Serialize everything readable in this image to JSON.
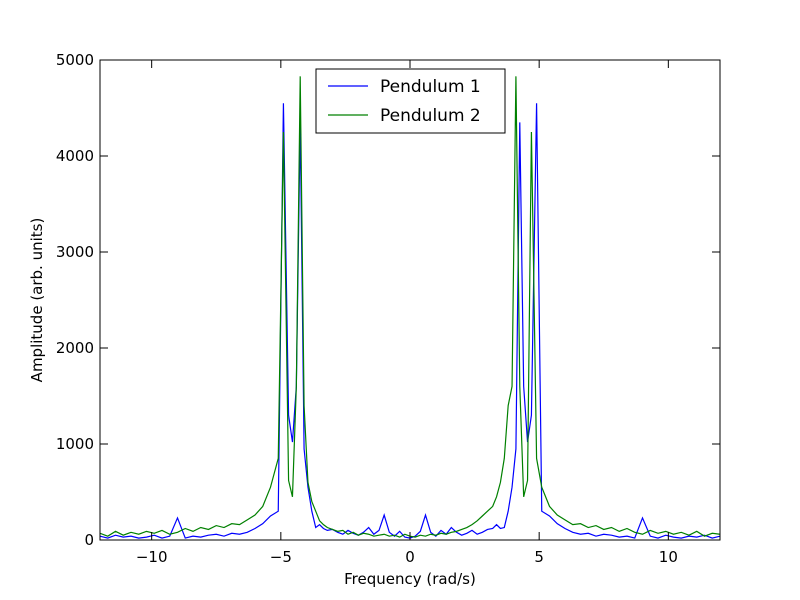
{
  "chart_data": {
    "type": "line",
    "title": "",
    "xlabel": "Frequency (rad/s)",
    "ylabel": "Amplitude (arb. units)",
    "xlim": [
      -12,
      12
    ],
    "ylim": [
      0,
      5000
    ],
    "xticks": [
      -10,
      -5,
      0,
      5,
      10
    ],
    "xtick_labels": [
      "−10",
      "−5",
      "0",
      "5",
      "10"
    ],
    "yticks": [
      0,
      1000,
      2000,
      3000,
      4000,
      5000
    ],
    "ytick_labels": [
      "0",
      "1000",
      "2000",
      "3000",
      "4000",
      "5000"
    ],
    "grid": false,
    "legend_position": "top-center",
    "series": [
      {
        "name": "Pendulum 1",
        "color": "#0000ff",
        "x": [
          -12.0,
          -11.7,
          -11.4,
          -11.1,
          -10.8,
          -10.5,
          -10.2,
          -9.9,
          -9.6,
          -9.3,
          -9.0,
          -8.7,
          -8.4,
          -8.1,
          -7.8,
          -7.5,
          -7.2,
          -6.9,
          -6.6,
          -6.3,
          -6.0,
          -5.7,
          -5.4,
          -5.1,
          -4.9,
          -4.7,
          -4.55,
          -4.4,
          -4.25,
          -4.1,
          -3.95,
          -3.8,
          -3.65,
          -3.5,
          -3.35,
          -3.2,
          -3.0,
          -2.8,
          -2.6,
          -2.4,
          -2.2,
          -2.0,
          -1.8,
          -1.6,
          -1.4,
          -1.2,
          -1.0,
          -0.8,
          -0.6,
          -0.4,
          -0.2,
          0.0,
          0.2,
          0.4,
          0.6,
          0.8,
          1.0,
          1.2,
          1.4,
          1.6,
          1.8,
          2.0,
          2.2,
          2.4,
          2.6,
          2.8,
          3.0,
          3.2,
          3.35,
          3.5,
          3.65,
          3.8,
          3.95,
          4.1,
          4.25,
          4.4,
          4.55,
          4.7,
          4.9,
          5.1,
          5.4,
          5.7,
          6.0,
          6.3,
          6.6,
          6.9,
          7.2,
          7.5,
          7.8,
          8.1,
          8.4,
          8.7,
          9.0,
          9.3,
          9.6,
          9.9,
          10.2,
          10.5,
          10.8,
          11.1,
          11.4,
          11.7,
          12.0
        ],
        "values": [
          40,
          20,
          50,
          30,
          40,
          20,
          30,
          50,
          20,
          40,
          230,
          20,
          40,
          30,
          50,
          60,
          40,
          70,
          60,
          80,
          120,
          170,
          250,
          300,
          4550,
          1300,
          1020,
          1600,
          4350,
          950,
          550,
          300,
          130,
          160,
          120,
          100,
          110,
          80,
          60,
          100,
          70,
          50,
          80,
          130,
          60,
          100,
          260,
          80,
          40,
          90,
          30,
          20,
          40,
          90,
          260,
          80,
          40,
          100,
          60,
          130,
          80,
          50,
          70,
          100,
          60,
          80,
          110,
          120,
          160,
          120,
          130,
          300,
          550,
          950,
          4350,
          1600,
          1020,
          1300,
          4550,
          300,
          250,
          170,
          120,
          80,
          60,
          70,
          40,
          60,
          50,
          30,
          40,
          20,
          230,
          40,
          20,
          50,
          30,
          20,
          40,
          30,
          50,
          20,
          40
        ]
      },
      {
        "name": "Pendulum 2",
        "color": "#008000",
        "x": [
          -12.0,
          -11.7,
          -11.4,
          -11.1,
          -10.8,
          -10.5,
          -10.2,
          -9.9,
          -9.6,
          -9.3,
          -9.0,
          -8.7,
          -8.4,
          -8.1,
          -7.8,
          -7.5,
          -7.2,
          -6.9,
          -6.6,
          -6.3,
          -6.0,
          -5.7,
          -5.4,
          -5.1,
          -4.9,
          -4.7,
          -4.55,
          -4.4,
          -4.25,
          -4.1,
          -3.95,
          -3.8,
          -3.65,
          -3.5,
          -3.35,
          -3.2,
          -3.0,
          -2.8,
          -2.6,
          -2.4,
          -2.2,
          -2.0,
          -1.8,
          -1.6,
          -1.4,
          -1.2,
          -1.0,
          -0.8,
          -0.6,
          -0.4,
          -0.2,
          0.0,
          0.2,
          0.4,
          0.6,
          0.8,
          1.0,
          1.2,
          1.4,
          1.6,
          1.8,
          2.0,
          2.2,
          2.4,
          2.6,
          2.8,
          3.0,
          3.2,
          3.35,
          3.5,
          3.65,
          3.8,
          3.95,
          4.1,
          4.25,
          4.4,
          4.55,
          4.7,
          4.9,
          5.1,
          5.4,
          5.7,
          6.0,
          6.3,
          6.6,
          6.9,
          7.2,
          7.5,
          7.8,
          8.1,
          8.4,
          8.7,
          9.0,
          9.3,
          9.6,
          9.9,
          10.2,
          10.5,
          10.8,
          11.1,
          11.4,
          11.7,
          12.0
        ],
        "values": [
          70,
          40,
          90,
          50,
          80,
          60,
          90,
          70,
          100,
          60,
          80,
          120,
          90,
          130,
          110,
          150,
          130,
          170,
          160,
          210,
          260,
          350,
          550,
          850,
          4250,
          620,
          450,
          1600,
          4830,
          1400,
          600,
          400,
          300,
          200,
          160,
          130,
          110,
          90,
          100,
          60,
          80,
          50,
          70,
          60,
          40,
          50,
          60,
          40,
          50,
          30,
          60,
          40,
          30,
          50,
          40,
          60,
          50,
          70,
          60,
          80,
          90,
          110,
          130,
          160,
          200,
          250,
          300,
          350,
          450,
          600,
          850,
          1400,
          1600,
          4830,
          1600,
          450,
          620,
          4250,
          850,
          550,
          350,
          260,
          210,
          160,
          170,
          130,
          150,
          110,
          130,
          90,
          120,
          80,
          60,
          100,
          70,
          90,
          60,
          80,
          50,
          90,
          40,
          70,
          60
        ]
      }
    ]
  }
}
